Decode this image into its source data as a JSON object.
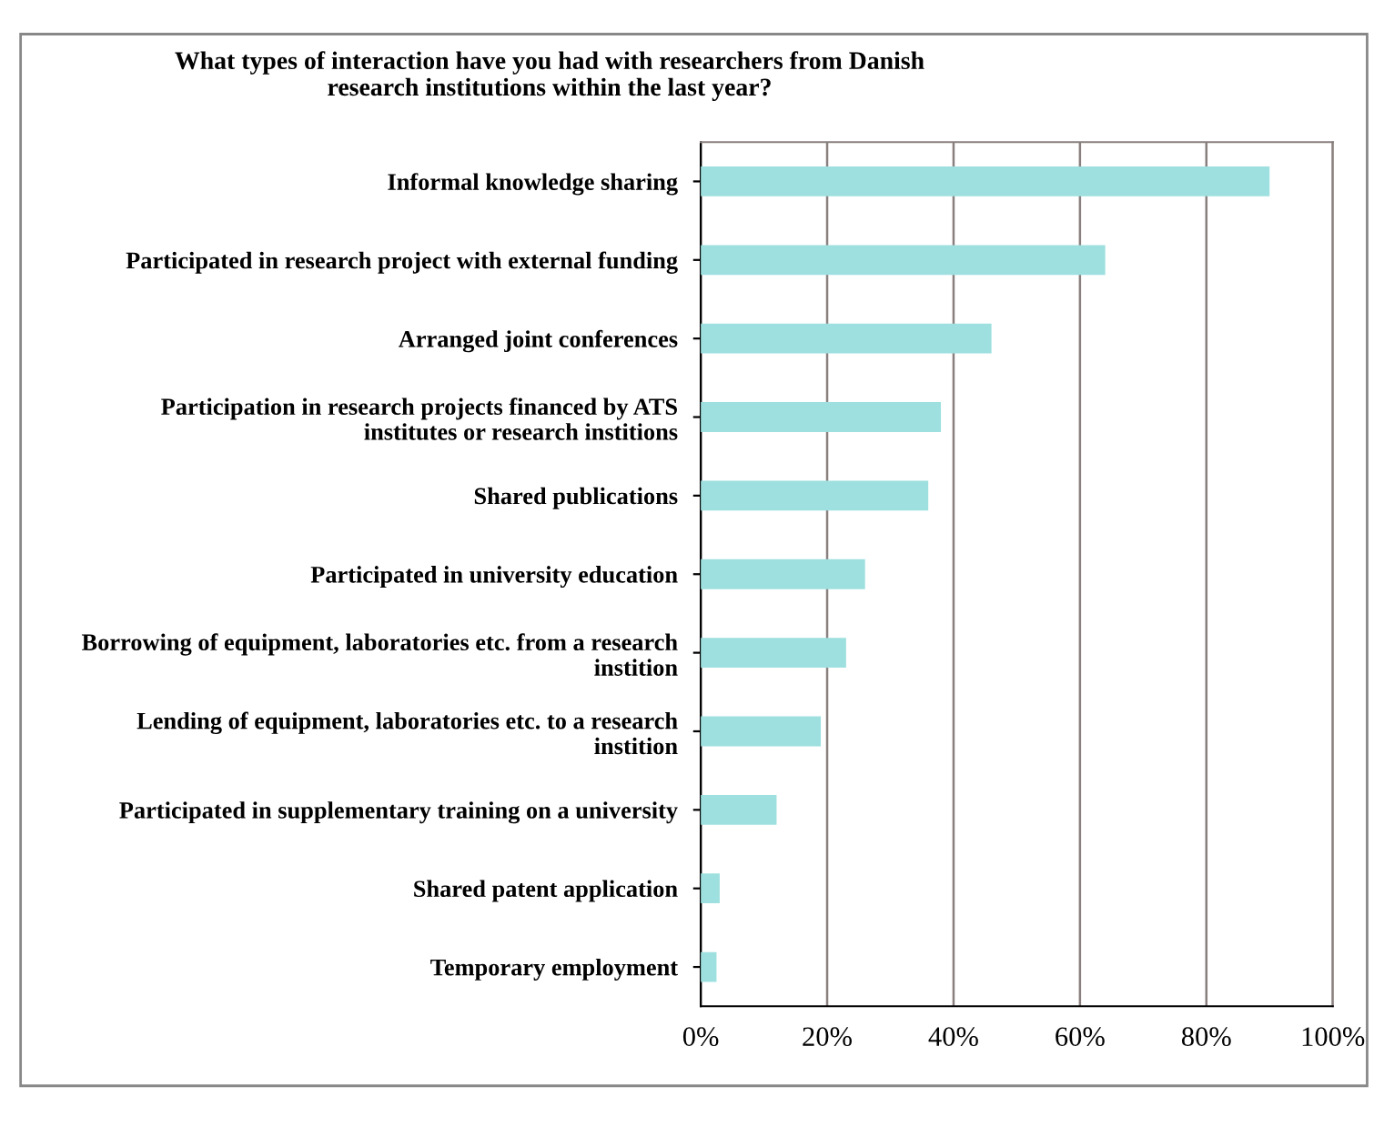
{
  "chart_data": {
    "type": "bar",
    "orientation": "horizontal",
    "title": "What types of interaction have you had with researchers from Danish\nresearch institutions within the last year?",
    "categories": [
      "Informal knowledge sharing",
      "Participated in research project with external funding",
      "Arranged joint conferences",
      "Participation in research projects financed by ATS\ninstitutes or research institions",
      "Shared publications",
      "Participated in university education",
      "Borrowing of equipment, laboratories etc. from a research\ninstition",
      "Lending of equipment, laboratories etc. to a research\ninstition",
      "Participated in supplementary training on a university",
      "Shared patent application",
      "Temporary employment"
    ],
    "values": [
      90,
      64,
      46,
      38,
      36,
      26,
      23,
      19,
      12,
      3,
      2.5
    ],
    "color": "#9ee0df",
    "xlim": [
      0,
      100
    ],
    "xticks": [
      {
        "value": 0,
        "label": "0%"
      },
      {
        "value": 20,
        "label": "20%"
      },
      {
        "value": 40,
        "label": "40%"
      },
      {
        "value": 60,
        "label": "60%"
      },
      {
        "value": 80,
        "label": "80%"
      },
      {
        "value": 100,
        "label": "100%"
      }
    ],
    "grid": "x",
    "legend": false
  }
}
